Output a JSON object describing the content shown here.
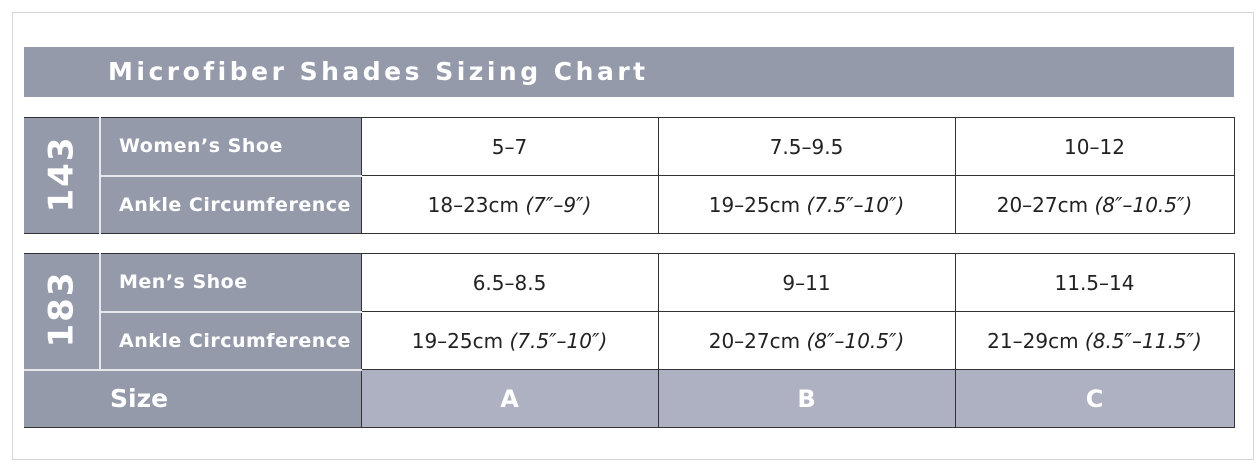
{
  "title": "Microfiber Shades Sizing Chart",
  "groups": [
    {
      "code": "143",
      "rows": [
        {
          "label": "Women’s Shoe",
          "values": [
            "5–7",
            "7.5–9.5",
            "10–12"
          ]
        },
        {
          "label": "Ankle Circumference",
          "values": [
            [
              "18–23cm",
              "(7″–9″)"
            ],
            [
              "19–25cm",
              "(7.5″–10″)"
            ],
            [
              "20–27cm",
              "(8″–10.5″)"
            ]
          ]
        }
      ]
    },
    {
      "code": "183",
      "rows": [
        {
          "label": "Men’s Shoe",
          "values": [
            "6.5–8.5",
            "9–11",
            "11.5–14"
          ]
        },
        {
          "label": "Ankle Circumference",
          "values": [
            [
              "19–25cm",
              "(7.5″–10″)"
            ],
            [
              "20–27cm",
              "(8″–10.5″)"
            ],
            [
              "21–29cm",
              "(8.5″–11.5″)"
            ]
          ]
        }
      ]
    }
  ],
  "size": {
    "label": "Size",
    "values": [
      "A",
      "B",
      "C"
    ]
  },
  "colors": {
    "header": "#959aab",
    "size_cells": "#aeb1c1"
  }
}
